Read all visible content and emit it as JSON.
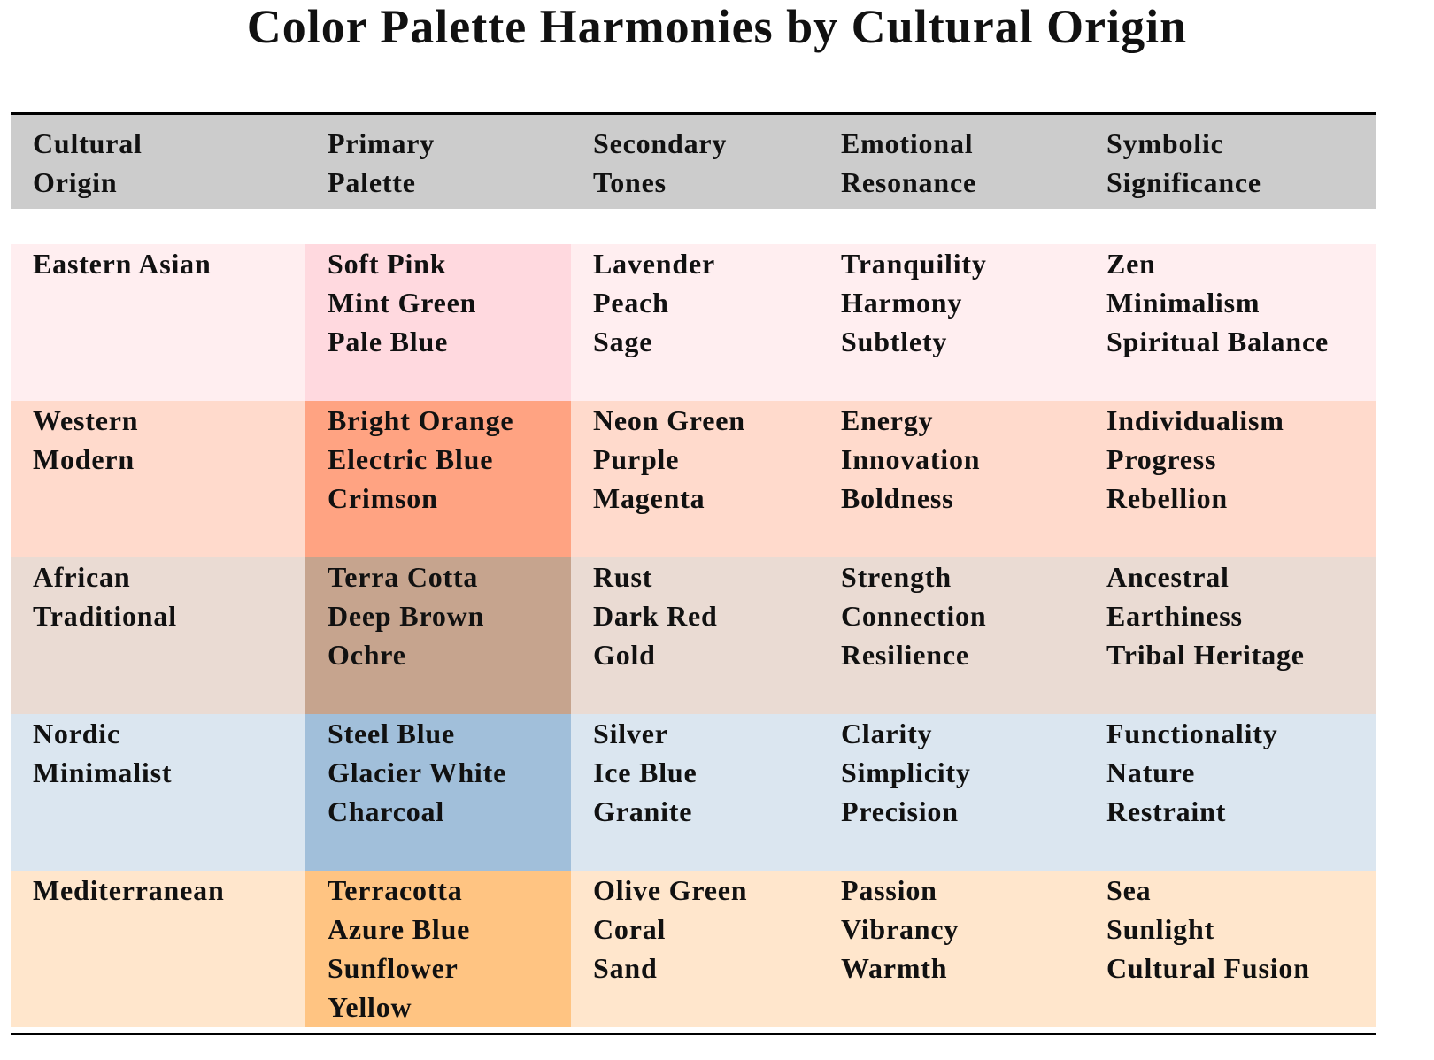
{
  "title": "Color Palette Harmonies by Cultural Origin",
  "table": {
    "header": [
      "Cultural Origin",
      "Primary Palette",
      "Secondary Tones",
      "Emotional Resonance",
      "Symbolic Significance"
    ],
    "header_color": "#cccccc",
    "rows": [
      {
        "color": "#ffeef0",
        "primary_color": "#ffd9df",
        "origin": "Eastern Asian",
        "primary": [
          "Soft Pink",
          "Mint Green",
          "Pale Blue"
        ],
        "secondary": [
          "Lavender",
          "Peach",
          "Sage"
        ],
        "emotional": [
          "Tranquility",
          "Harmony",
          "Subtlety"
        ],
        "symbolic": [
          "Zen",
          "Minimalism",
          "Spiritual Balance"
        ]
      },
      {
        "color": "#ffdacc",
        "primary_color": "#ffa382",
        "origin": "Western Modern",
        "primary": [
          "Bright Orange",
          "Electric Blue",
          "Crimson"
        ],
        "secondary": [
          "Neon Green",
          "Purple",
          "Magenta"
        ],
        "emotional": [
          "Energy",
          "Innovation",
          "Boldness"
        ],
        "symbolic": [
          "Individualism",
          "Progress",
          "Rebellion"
        ]
      },
      {
        "color": "#eadbd3",
        "primary_color": "#c6a48e",
        "origin": "African Traditional",
        "primary": [
          "Terra Cotta",
          "Deep Brown",
          "Ochre"
        ],
        "secondary": [
          "Rust",
          "Dark Red",
          "Gold"
        ],
        "emotional": [
          "Strength",
          "Connection",
          "Resilience"
        ],
        "symbolic": [
          "Ancestral",
          "Earthiness",
          "Tribal Heritage"
        ]
      },
      {
        "color": "#dbe6f0",
        "primary_color": "#a1bfda",
        "origin": "Nordic Minimalist",
        "primary": [
          "Steel Blue",
          "Glacier White",
          "Charcoal"
        ],
        "secondary": [
          "Silver",
          "Ice Blue",
          "Granite"
        ],
        "emotional": [
          "Clarity",
          "Simplicity",
          "Precision"
        ],
        "symbolic": [
          "Functionality",
          "Nature",
          "Restraint"
        ]
      },
      {
        "color": "#ffe6cc",
        "primary_color": "#ffc482",
        "origin": "Mediterranean",
        "primary": [
          "Terracotta",
          "Azure Blue",
          "Sunflower Yellow"
        ],
        "secondary": [
          "Olive Green",
          "Coral",
          "Sand"
        ],
        "emotional": [
          "Passion",
          "Vibrancy",
          "Warmth"
        ],
        "symbolic": [
          "Sea",
          "Sunlight",
          "Cultural Fusion"
        ]
      }
    ]
  }
}
